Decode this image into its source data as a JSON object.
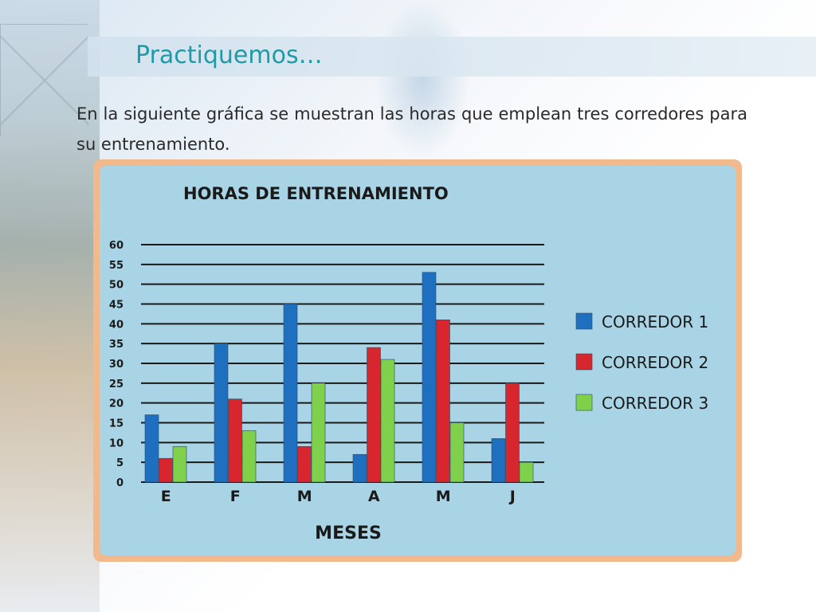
{
  "slide": {
    "title": "Practiquemos…",
    "intro": "En la siguiente gráfica se muestran las horas que emplean tres corredores para su entrenamiento."
  },
  "colors": {
    "title": "#1f9aa6",
    "panel": "#a9d4e6",
    "frame": "#f2b98d",
    "gridline": "#1a1a1a"
  },
  "chart_data": {
    "type": "bar",
    "title": "HORAS DE ENTRENAMIENTO",
    "xlabel": "MESES",
    "ylabel": "",
    "categories": [
      "E",
      "F",
      "M",
      "A",
      "M",
      "J"
    ],
    "ylim": [
      0,
      60
    ],
    "yticks": [
      0,
      5,
      10,
      15,
      20,
      25,
      30,
      35,
      40,
      45,
      50,
      55,
      60
    ],
    "grid": true,
    "legend_position": "right",
    "series": [
      {
        "name": "CORREDOR 1",
        "color": "#1f6fc0",
        "values": [
          17,
          35,
          45,
          7,
          53,
          11
        ]
      },
      {
        "name": "CORREDOR 2",
        "color": "#d8262e",
        "values": [
          6,
          21,
          9,
          34,
          41,
          25
        ]
      },
      {
        "name": "CORREDOR 3",
        "color": "#7fd04b",
        "values": [
          9,
          13,
          25,
          31,
          15,
          5
        ]
      }
    ]
  }
}
